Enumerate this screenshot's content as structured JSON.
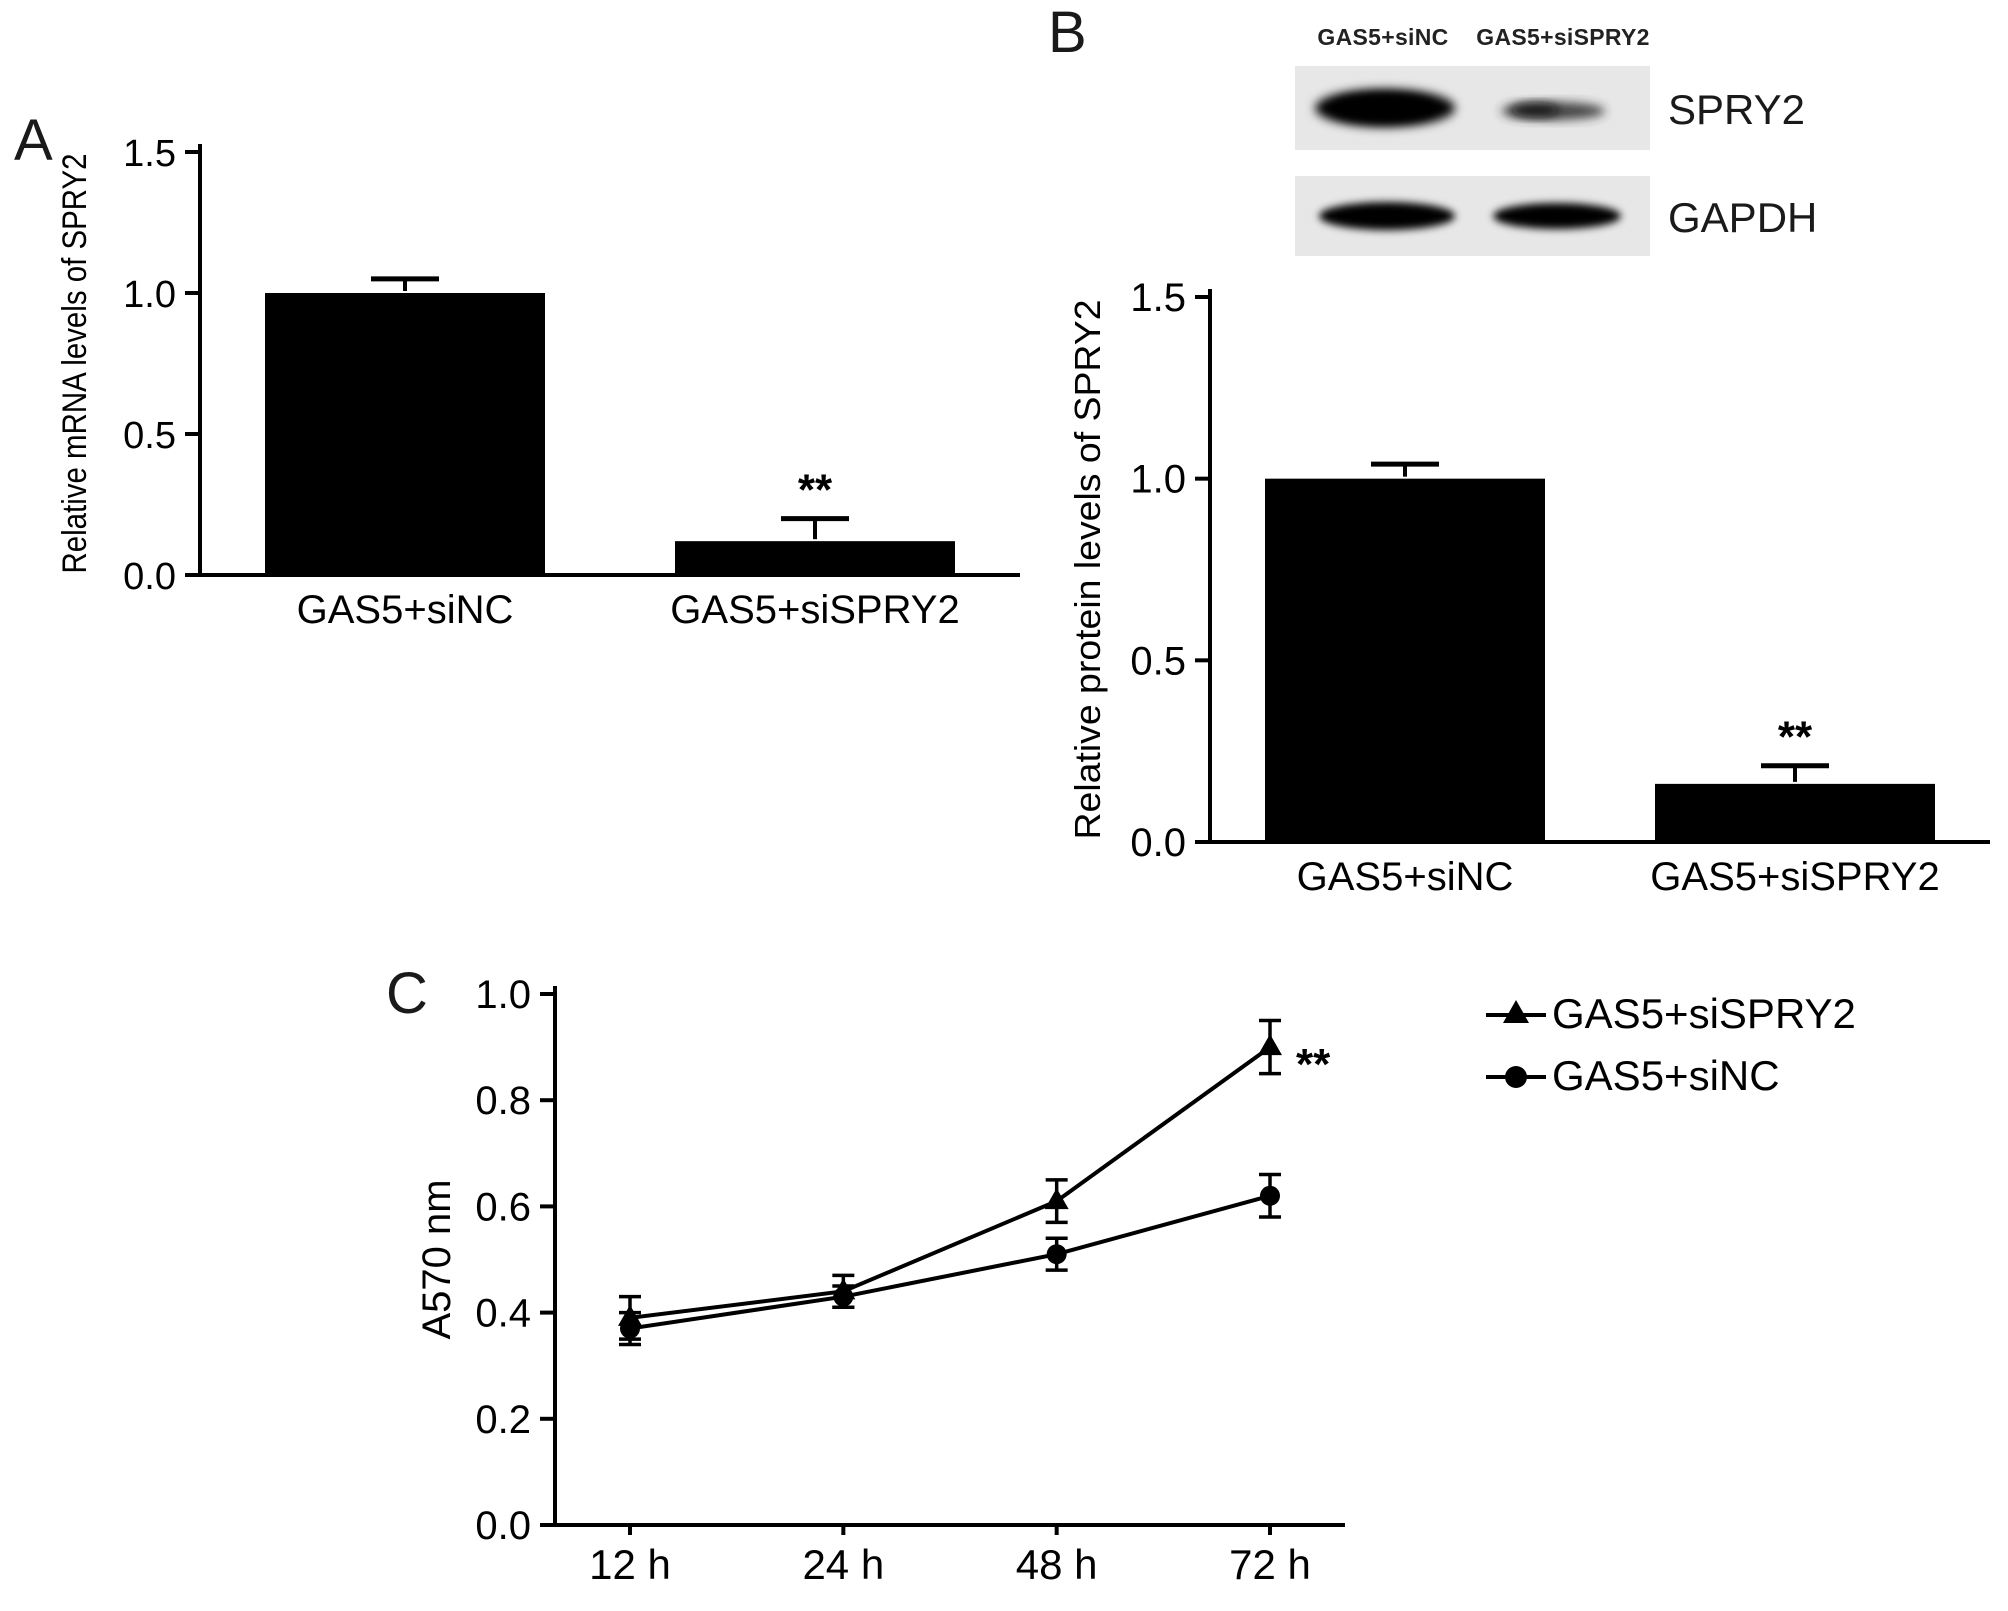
{
  "panels": {
    "a": "A",
    "b": "B",
    "c": "C"
  },
  "colors": {
    "ink": "#000000",
    "blot_bg": "#e7e7e7",
    "band": "#0a0a0a"
  },
  "blot": {
    "lane_labels": [
      "GAS5+siNC",
      "GAS5+siSPRY2"
    ],
    "band_labels": [
      "SPRY2",
      "GAPDH"
    ]
  },
  "chart_data": [
    {
      "panel": "A",
      "type": "bar",
      "title": "",
      "ylabel": "Relative mRNA levels of SPRY2",
      "xlabel": "",
      "categories": [
        "GAS5+siNC",
        "GAS5+siSPRY2"
      ],
      "values": [
        1.0,
        0.12
      ],
      "errors": [
        0.05,
        0.08
      ],
      "annotations": [
        "",
        "**"
      ],
      "ylim": [
        0,
        1.5
      ],
      "yticks": [
        0,
        0.5,
        1.0,
        1.5
      ],
      "ytick_labels": [
        "0.0",
        "0.5",
        "1.0",
        "1.5"
      ],
      "grid": false,
      "legend_position": "none"
    },
    {
      "panel": "B",
      "type": "bar",
      "title": "",
      "ylabel": "Relative protein levels of SPRY2",
      "xlabel": "",
      "categories": [
        "GAS5+siNC",
        "GAS5+siSPRY2"
      ],
      "values": [
        1.0,
        0.16
      ],
      "errors": [
        0.04,
        0.05
      ],
      "annotations": [
        "",
        "**"
      ],
      "ylim": [
        0,
        1.5
      ],
      "yticks": [
        0,
        0.5,
        1.0,
        1.5
      ],
      "ytick_labels": [
        "0.0",
        "0.5",
        "1.0",
        "1.5"
      ],
      "grid": false,
      "legend_position": "none"
    },
    {
      "panel": "C",
      "type": "line",
      "title": "",
      "ylabel": "A570 nm",
      "xlabel": "",
      "categories": [
        "12 h",
        "24 h",
        "48 h",
        "72 h"
      ],
      "series": [
        {
          "name": "GAS5+siSPRY2",
          "marker": "triangle",
          "values": [
            0.39,
            0.44,
            0.61,
            0.9
          ],
          "errors": [
            0.04,
            0.03,
            0.04,
            0.05
          ],
          "annotation": "**"
        },
        {
          "name": "GAS5+siNC",
          "marker": "circle",
          "values": [
            0.37,
            0.43,
            0.51,
            0.62
          ],
          "errors": [
            0.03,
            0.02,
            0.03,
            0.04
          ],
          "annotation": ""
        }
      ],
      "ylim": [
        0,
        1.0
      ],
      "yticks": [
        0,
        0.2,
        0.4,
        0.6,
        0.8,
        1.0
      ],
      "ytick_labels": [
        "0.0",
        "0.2",
        "0.4",
        "0.6",
        "0.8",
        "1.0"
      ],
      "grid": false,
      "legend_position": "right"
    }
  ]
}
